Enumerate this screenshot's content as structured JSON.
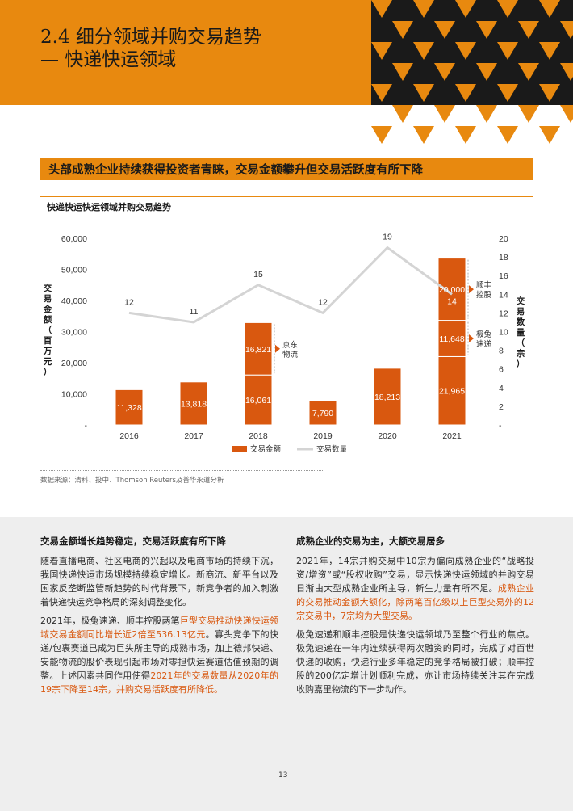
{
  "header": {
    "title_line1": "2.4 细分领域并购交易趋势",
    "title_line2": "— 快递快运领域"
  },
  "banner": "头部成熟企业持续获得投资者青睐，交易金额攀升但交易活跃度有所下降",
  "chart_title": "快递快运快运领域并购交易趋势",
  "chart_data": {
    "type": "bar",
    "categories": [
      "2016",
      "2017",
      "2018",
      "2019",
      "2020",
      "2021"
    ],
    "series": [
      {
        "name": "交易金额",
        "stack": [
          [
            11328
          ],
          [
            13818
          ],
          [
            16061,
            16821
          ],
          [
            7790
          ],
          [
            18213
          ],
          [
            21965,
            11648,
            20000
          ]
        ]
      },
      {
        "name": "交易数量",
        "type": "line",
        "axis": "right",
        "values": [
          12,
          11,
          15,
          12,
          19,
          14
        ]
      }
    ],
    "bar_labels": [
      [
        "11,328"
      ],
      [
        "13,818"
      ],
      [
        "16,061",
        "16,821"
      ],
      [
        "7,790"
      ],
      [
        "18,213"
      ],
      [
        "21,965",
        "11,648",
        "20,000"
      ]
    ],
    "line_labels": [
      "12",
      "11",
      "15",
      "12",
      "19",
      "14"
    ],
    "ylabel": "交易金额（百万元）",
    "y2label": "交易数量（宗）",
    "ylim": [
      0,
      60000
    ],
    "y2lim": [
      0,
      20
    ],
    "yticks": [
      "-",
      "10,000",
      "20,000",
      "30,000",
      "40,000",
      "50,000",
      "60,000"
    ],
    "y2ticks": [
      "-",
      "2",
      "4",
      "6",
      "8",
      "10",
      "12",
      "14",
      "16",
      "18",
      "20"
    ],
    "legend": [
      "交易金额",
      "交易数量"
    ],
    "legend_position": "bottom",
    "annotations": [
      {
        "text": "京东物流",
        "year": "2018"
      },
      {
        "text": "顺丰控股",
        "year": "2021"
      },
      {
        "text": "极兔速递",
        "year": "2021"
      }
    ],
    "colors": {
      "bar": "#d9580f",
      "line": "#d4d4d4"
    }
  },
  "source": "数据来源：清科、投中、Thomson Reuters及普华永道分析",
  "left_col": {
    "heading": "交易金额增长趋势稳定，交易活跃度有所下降",
    "p1": "随着直播电商、社区电商的兴起以及电商市场的持续下沉，我国快递快运市场规模持续稳定增长。新商流、新平台以及国家反垄断监管新趋势的时代背景下，新竞争者的加入刺激着快递快运竞争格局的深刻调整变化。",
    "p2_a": "2021年，极兔速递、顺丰控股两笔",
    "p2_b": "巨型交易推动快递快运领域交易金额同比增长近2倍至536.13亿元",
    "p2_c": "。寡头竞争下的快递/包裹赛道已成为巨头所主导的成熟市场，加上德邦快递、安能物流的股价表现引起市场对零担快运赛道估值预期的调整。上述因素共同作用使得",
    "p2_d": "2021年的交易数量从2020年的19宗下降至14宗，并购交易活跃度有所降低。"
  },
  "right_col": {
    "heading": "成熟企业的交易为主，大额交易居多",
    "p1_a": "2021年，14宗并购交易中10宗为偏向成熟企业的“战略投资/增资”或“股权收购”交易，显示快递快运领域的并购交易日渐由大型成熟企业所主导，新生力量有所不足。",
    "p1_b": "成熟企业的交易推动金额大额化，除两笔百亿级以上巨型交易外的12宗交易中，7宗均为大型交易。",
    "p2": "极兔速递和顺丰控股是快递快运领域乃至整个行业的焦点。极兔速递在一年内连续获得两次融资的同时，完成了对百世快递的收购，快递行业多年稳定的竞争格局被打破；顺丰控股的200亿定增计划顺利完成，亦让市场持续关注其在完成收购嘉里物流的下一步动作。"
  },
  "page_number": "13"
}
